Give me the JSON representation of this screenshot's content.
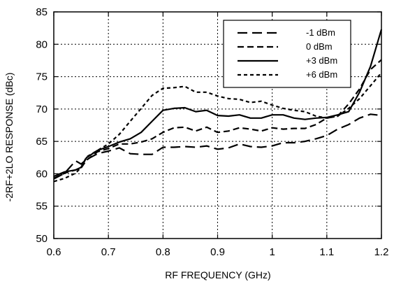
{
  "chart_data": {
    "type": "line",
    "title": "",
    "xlabel": "RF FREQUENCY (GHz)",
    "ylabel": "-2RF+2LO RESPONSE (dBc)",
    "xlim": [
      0.6,
      1.2
    ],
    "ylim": [
      50,
      85
    ],
    "x_ticks": [
      "0.6",
      "0.7",
      "0.8",
      "0.9",
      "1",
      "1.1",
      "1.2"
    ],
    "y_ticks": [
      "50",
      "55",
      "60",
      "65",
      "70",
      "75",
      "80",
      "85"
    ],
    "grid": true,
    "legend_position": "top-right",
    "series": [
      {
        "name": "-1 dBm",
        "dash": "long-dash",
        "x": [
          0.6,
          0.62,
          0.64,
          0.65,
          0.66,
          0.68,
          0.7,
          0.72,
          0.74,
          0.76,
          0.78,
          0.8,
          0.82,
          0.84,
          0.86,
          0.88,
          0.9,
          0.92,
          0.94,
          0.96,
          0.98,
          1.0,
          1.02,
          1.04,
          1.06,
          1.08,
          1.1,
          1.12,
          1.14,
          1.16,
          1.18,
          1.2
        ],
        "y": [
          59.2,
          60.1,
          62.0,
          61.5,
          62.2,
          63.1,
          63.5,
          64.0,
          63.1,
          63.0,
          63.0,
          64.1,
          64.1,
          64.2,
          64.1,
          64.3,
          63.8,
          64.0,
          64.6,
          64.2,
          64.1,
          64.3,
          64.8,
          64.8,
          65.0,
          65.4,
          65.9,
          66.9,
          67.6,
          68.6,
          69.2,
          69.0
        ]
      },
      {
        "name": "0 dBm",
        "dash": "medium-dash",
        "x": [
          0.6,
          0.62,
          0.64,
          0.65,
          0.66,
          0.68,
          0.7,
          0.72,
          0.74,
          0.76,
          0.78,
          0.8,
          0.82,
          0.84,
          0.86,
          0.88,
          0.9,
          0.92,
          0.94,
          0.96,
          0.98,
          1.0,
          1.02,
          1.04,
          1.06,
          1.08,
          1.1,
          1.12,
          1.14,
          1.16,
          1.18,
          1.2
        ],
        "y": [
          59.3,
          60.1,
          60.6,
          60.9,
          62.1,
          63.4,
          63.9,
          64.6,
          64.6,
          64.9,
          65.4,
          66.4,
          67.1,
          67.2,
          66.6,
          67.2,
          66.4,
          66.6,
          67.1,
          66.9,
          66.6,
          67.1,
          66.9,
          67.0,
          67.0,
          67.6,
          68.6,
          68.9,
          70.8,
          73.1,
          76.1,
          77.6
        ]
      },
      {
        "name": "+3 dBm",
        "dash": "solid",
        "x": [
          0.6,
          0.62,
          0.64,
          0.65,
          0.66,
          0.68,
          0.7,
          0.72,
          0.74,
          0.76,
          0.78,
          0.8,
          0.82,
          0.84,
          0.86,
          0.88,
          0.9,
          0.92,
          0.94,
          0.96,
          0.98,
          1.0,
          1.02,
          1.04,
          1.06,
          1.08,
          1.1,
          1.12,
          1.14,
          1.16,
          1.18,
          1.2
        ],
        "y": [
          59.6,
          60.3,
          60.6,
          61.0,
          62.5,
          63.6,
          64.2,
          64.9,
          65.4,
          66.4,
          68.1,
          69.8,
          70.1,
          70.2,
          69.6,
          69.8,
          69.0,
          68.9,
          69.1,
          68.6,
          68.6,
          69.1,
          69.1,
          68.6,
          68.4,
          68.6,
          68.7,
          69.1,
          69.6,
          72.6,
          76.6,
          82.3
        ]
      },
      {
        "name": "+6 dBm",
        "dash": "short-dash",
        "x": [
          0.6,
          0.62,
          0.64,
          0.65,
          0.66,
          0.68,
          0.7,
          0.72,
          0.74,
          0.76,
          0.78,
          0.8,
          0.82,
          0.84,
          0.86,
          0.88,
          0.9,
          0.92,
          0.94,
          0.96,
          0.98,
          1.0,
          1.02,
          1.04,
          1.06,
          1.08,
          1.1,
          1.12,
          1.14,
          1.16,
          1.18,
          1.2
        ],
        "y": [
          58.8,
          59.3,
          60.1,
          61.0,
          62.6,
          63.6,
          64.6,
          66.1,
          68.1,
          70.1,
          72.1,
          73.2,
          73.3,
          73.5,
          72.6,
          72.6,
          72.0,
          71.6,
          71.5,
          71.0,
          71.2,
          70.6,
          70.1,
          69.8,
          69.6,
          68.9,
          68.6,
          68.9,
          70.1,
          71.6,
          73.6,
          75.6
        ]
      }
    ]
  }
}
